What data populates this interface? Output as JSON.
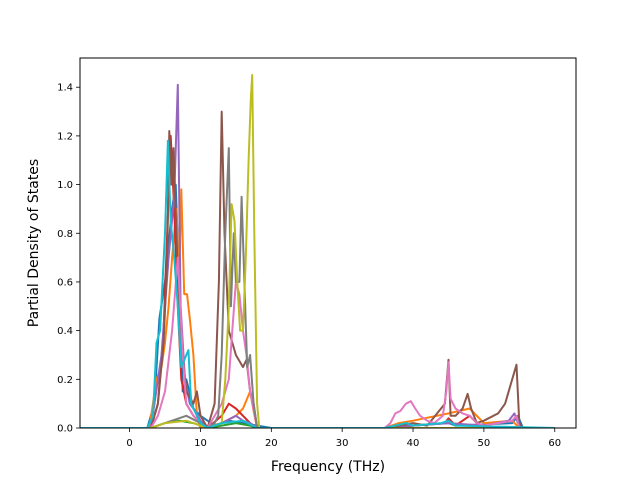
{
  "chart_data": {
    "type": "line",
    "title": "",
    "xlabel": "Frequency (THz)",
    "ylabel": "Partial Density of States",
    "xlim": [
      -7.0,
      63.0
    ],
    "ylim": [
      0.0,
      1.52
    ],
    "xticks": [
      0,
      10,
      20,
      30,
      40,
      50,
      60
    ],
    "yticks": [
      0.0,
      0.2,
      0.4,
      0.6,
      0.8,
      1.0,
      1.2,
      1.4
    ],
    "xtick_labels": [
      "0",
      "10",
      "20",
      "30",
      "40",
      "50",
      "60"
    ],
    "ytick_labels": [
      "0.0",
      "0.2",
      "0.4",
      "0.6",
      "0.8",
      "1.0",
      "1.2",
      "1.4"
    ],
    "grid": false,
    "legend": "none",
    "series": [
      {
        "color": "#1f77b4",
        "points": [
          [
            -7,
            0
          ],
          [
            2.5,
            0
          ],
          [
            3.5,
            0.1
          ],
          [
            4.2,
            0.45
          ],
          [
            5,
            0.6
          ],
          [
            6,
            0.9
          ],
          [
            6.5,
            1.0
          ],
          [
            7,
            0.6
          ],
          [
            7.5,
            0.15
          ],
          [
            8,
            0.2
          ],
          [
            9,
            0.08
          ],
          [
            10,
            0.05
          ],
          [
            12,
            0.01
          ],
          [
            14,
            0.03
          ],
          [
            16,
            0.02
          ],
          [
            18,
            0.01
          ],
          [
            20,
            0
          ],
          [
            36,
            0
          ],
          [
            39,
            0.02
          ],
          [
            40,
            0.01
          ],
          [
            45,
            0.02
          ],
          [
            46,
            0.01
          ],
          [
            54,
            0.02
          ],
          [
            54.8,
            0.05
          ],
          [
            55.5,
            0
          ],
          [
            60,
            0
          ]
        ]
      },
      {
        "color": "#ff7f0e",
        "points": [
          [
            -7,
            0
          ],
          [
            2.8,
            0
          ],
          [
            3.8,
            0.2
          ],
          [
            4.5,
            0.25
          ],
          [
            5,
            0.35
          ],
          [
            5.5,
            0.5
          ],
          [
            6,
            0.7
          ],
          [
            6.6,
            0.9
          ],
          [
            7,
            0.6
          ],
          [
            7.3,
            0.98
          ],
          [
            7.7,
            0.55
          ],
          [
            8.1,
            0.55
          ],
          [
            8.5,
            0.45
          ],
          [
            9,
            0.3
          ],
          [
            9.5,
            0.05
          ],
          [
            10,
            0
          ],
          [
            13,
            0.02
          ],
          [
            15,
            0.05
          ],
          [
            16,
            0.08
          ],
          [
            17,
            0.15
          ],
          [
            17.5,
            0.07
          ],
          [
            18,
            0
          ],
          [
            36,
            0
          ],
          [
            38,
            0.02
          ],
          [
            40,
            0.03
          ],
          [
            45,
            0.06
          ],
          [
            48,
            0.08
          ],
          [
            50,
            0.02
          ],
          [
            54,
            0.03
          ],
          [
            55,
            0
          ],
          [
            60,
            0
          ]
        ]
      },
      {
        "color": "#2ca02c",
        "points": [
          [
            -7,
            0
          ],
          [
            3,
            0
          ],
          [
            5,
            0.02
          ],
          [
            7,
            0.03
          ],
          [
            9,
            0.02
          ],
          [
            11,
            0
          ],
          [
            13,
            0.01
          ],
          [
            15,
            0.02
          ],
          [
            17,
            0.01
          ],
          [
            18,
            0
          ],
          [
            60,
            0
          ]
        ]
      },
      {
        "color": "#d62728",
        "points": [
          [
            -7,
            0
          ],
          [
            3,
            0
          ],
          [
            4,
            0.1
          ],
          [
            4.8,
            0.4
          ],
          [
            5.3,
            0.8
          ],
          [
            5.8,
            1.2
          ],
          [
            6.3,
            0.9
          ],
          [
            6.8,
            0.5
          ],
          [
            7.3,
            0.2
          ],
          [
            8,
            0.1
          ],
          [
            9,
            0.05
          ],
          [
            10,
            0.02
          ],
          [
            11,
            0
          ],
          [
            13,
            0.05
          ],
          [
            14,
            0.1
          ],
          [
            15,
            0.08
          ],
          [
            16,
            0.05
          ],
          [
            17,
            0.02
          ],
          [
            18,
            0
          ],
          [
            36,
            0
          ],
          [
            40,
            0.01
          ],
          [
            44.5,
            0.02
          ],
          [
            45,
            0.04
          ],
          [
            46,
            0.01
          ],
          [
            47,
            0.03
          ],
          [
            48,
            0.05
          ],
          [
            49,
            0.02
          ],
          [
            50,
            0
          ],
          [
            60,
            0
          ]
        ]
      },
      {
        "color": "#9467bd",
        "points": [
          [
            -7,
            0
          ],
          [
            3,
            0
          ],
          [
            4.5,
            0.3
          ],
          [
            5.5,
            0.7
          ],
          [
            6.3,
            0.95
          ],
          [
            6.8,
            1.41
          ],
          [
            7.2,
            0.5
          ],
          [
            7.8,
            0.2
          ],
          [
            8.5,
            0.1
          ],
          [
            9.5,
            0.06
          ],
          [
            10,
            0.03
          ],
          [
            11,
            0
          ],
          [
            13,
            0.02
          ],
          [
            15,
            0.05
          ],
          [
            16,
            0.03
          ],
          [
            17,
            0.02
          ],
          [
            18,
            0
          ],
          [
            36,
            0
          ],
          [
            40,
            0.01
          ],
          [
            45,
            0.02
          ],
          [
            50,
            0.01
          ],
          [
            53.5,
            0.03
          ],
          [
            54.3,
            0.06
          ],
          [
            54.8,
            0.02
          ],
          [
            55.5,
            0
          ],
          [
            60,
            0
          ]
        ]
      },
      {
        "color": "#8c564b",
        "points": [
          [
            -7,
            0
          ],
          [
            3,
            0
          ],
          [
            4,
            0.1
          ],
          [
            4.8,
            0.35
          ],
          [
            5.3,
            0.7
          ],
          [
            5.6,
            1.22
          ],
          [
            5.9,
            1.0
          ],
          [
            6.2,
            1.15
          ],
          [
            6.6,
            0.8
          ],
          [
            7,
            0.5
          ],
          [
            7.5,
            0.3
          ],
          [
            8,
            0.15
          ],
          [
            9,
            0.1
          ],
          [
            9.5,
            0.15
          ],
          [
            10,
            0.05
          ],
          [
            11,
            0
          ],
          [
            12,
            0.1
          ],
          [
            12.6,
            0.6
          ],
          [
            13,
            1.3
          ],
          [
            13.4,
            0.8
          ],
          [
            14,
            0.4
          ],
          [
            15,
            0.3
          ],
          [
            16,
            0.25
          ],
          [
            16.5,
            0.28
          ],
          [
            17,
            0.15
          ],
          [
            17.5,
            0.1
          ],
          [
            18,
            0
          ],
          [
            36,
            0
          ],
          [
            38,
            0.01
          ],
          [
            40,
            0.02
          ],
          [
            42,
            0.01
          ],
          [
            44.5,
            0.1
          ],
          [
            45,
            0.28
          ],
          [
            45.3,
            0.05
          ],
          [
            46,
            0.05
          ],
          [
            47,
            0.08
          ],
          [
            47.7,
            0.14
          ],
          [
            48.2,
            0.08
          ],
          [
            49,
            0.02
          ],
          [
            50,
            0.03
          ],
          [
            52,
            0.06
          ],
          [
            53,
            0.1
          ],
          [
            54,
            0.2
          ],
          [
            54.6,
            0.26
          ],
          [
            55,
            0.02
          ],
          [
            55.5,
            0
          ],
          [
            60,
            0
          ]
        ]
      },
      {
        "color": "#e377c2",
        "points": [
          [
            -7,
            0
          ],
          [
            3,
            0
          ],
          [
            4,
            0.05
          ],
          [
            5,
            0.15
          ],
          [
            6,
            0.4
          ],
          [
            6.8,
            0.7
          ],
          [
            7.5,
            0.3
          ],
          [
            8,
            0.1
          ],
          [
            9,
            0.05
          ],
          [
            10,
            0.02
          ],
          [
            11,
            0
          ],
          [
            13,
            0.1
          ],
          [
            14,
            0.2
          ],
          [
            14.5,
            0.4
          ],
          [
            15,
            0.6
          ],
          [
            15.5,
            0.55
          ],
          [
            16,
            0.4
          ],
          [
            16.5,
            0.3
          ],
          [
            17,
            0.15
          ],
          [
            18,
            0
          ],
          [
            36,
            0
          ],
          [
            36.8,
            0.02
          ],
          [
            37.5,
            0.06
          ],
          [
            38.2,
            0.07
          ],
          [
            39,
            0.1
          ],
          [
            39.7,
            0.11
          ],
          [
            40.3,
            0.08
          ],
          [
            41,
            0.05
          ],
          [
            42,
            0.03
          ],
          [
            43,
            0.02
          ],
          [
            44.2,
            0.05
          ],
          [
            44.7,
            0.15
          ],
          [
            45,
            0.27
          ],
          [
            45.3,
            0.12
          ],
          [
            46,
            0.08
          ],
          [
            47,
            0.06
          ],
          [
            48,
            0.05
          ],
          [
            49,
            0.02
          ],
          [
            50,
            0.01
          ],
          [
            54,
            0.03
          ],
          [
            54.6,
            0.05
          ],
          [
            55,
            0
          ],
          [
            60,
            0
          ]
        ]
      },
      {
        "color": "#7f7f7f",
        "points": [
          [
            -7,
            0
          ],
          [
            3,
            0
          ],
          [
            5,
            0.02
          ],
          [
            8,
            0.05
          ],
          [
            10,
            0.02
          ],
          [
            11,
            0
          ],
          [
            12,
            0.02
          ],
          [
            12.5,
            0.05
          ],
          [
            13,
            0.3
          ],
          [
            13.5,
            0.8
          ],
          [
            14,
            1.15
          ],
          [
            14.3,
            0.5
          ],
          [
            14.7,
            0.8
          ],
          [
            15,
            0.6
          ],
          [
            15.5,
            0.6
          ],
          [
            15.8,
            0.95
          ],
          [
            16.2,
            0.6
          ],
          [
            16.6,
            0.25
          ],
          [
            17,
            0.3
          ],
          [
            17.5,
            0.1
          ],
          [
            18,
            0
          ],
          [
            60,
            0
          ]
        ]
      },
      {
        "color": "#bcbd22",
        "points": [
          [
            -7,
            0
          ],
          [
            3,
            0
          ],
          [
            5,
            0.02
          ],
          [
            8,
            0.03
          ],
          [
            10,
            0.01
          ],
          [
            11,
            0
          ],
          [
            13,
            0.02
          ],
          [
            13.5,
            0.2
          ],
          [
            14,
            0.5
          ],
          [
            14.4,
            0.92
          ],
          [
            14.8,
            0.85
          ],
          [
            15.2,
            0.6
          ],
          [
            15.6,
            0.4
          ],
          [
            16,
            0.4
          ],
          [
            16.4,
            0.7
          ],
          [
            16.8,
            1.1
          ],
          [
            17.1,
            1.35
          ],
          [
            17.3,
            1.45
          ],
          [
            17.6,
            0.8
          ],
          [
            18,
            0.1
          ],
          [
            18.3,
            0
          ],
          [
            60,
            0
          ]
        ]
      },
      {
        "color": "#17becf",
        "points": [
          [
            -7,
            0
          ],
          [
            2.5,
            0
          ],
          [
            3.3,
            0.05
          ],
          [
            3.8,
            0.35
          ],
          [
            4.3,
            0.4
          ],
          [
            5,
            0.8
          ],
          [
            5.4,
            1.18
          ],
          [
            5.8,
            0.85
          ],
          [
            6.3,
            0.7
          ],
          [
            6.8,
            0.5
          ],
          [
            7.3,
            0.25
          ],
          [
            8,
            0.3
          ],
          [
            8.3,
            0.32
          ],
          [
            8.7,
            0.1
          ],
          [
            9.5,
            0.05
          ],
          [
            10,
            0.02
          ],
          [
            11,
            0
          ],
          [
            13,
            0.02
          ],
          [
            16,
            0.03
          ],
          [
            18,
            0
          ],
          [
            36,
            0
          ],
          [
            39,
            0.02
          ],
          [
            40,
            0.01
          ],
          [
            44,
            0.02
          ],
          [
            45,
            0.03
          ],
          [
            46,
            0.01
          ],
          [
            60,
            0
          ]
        ]
      }
    ]
  }
}
